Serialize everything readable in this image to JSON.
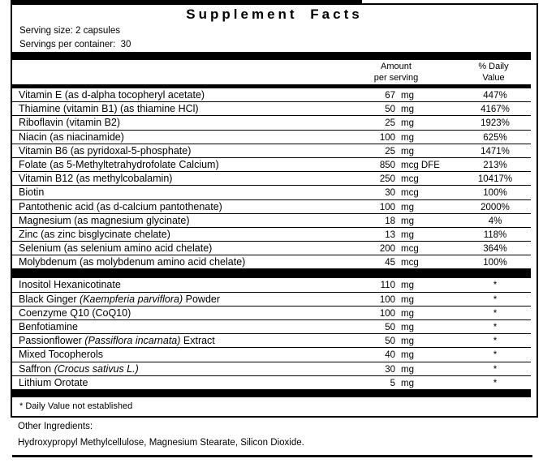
{
  "colors": {
    "ink": "#000000",
    "background": "#ffffff"
  },
  "label": {
    "title": "Supplement Facts",
    "serving_size": "Serving size: 2 capsules",
    "servings_per_container": "Servings per container:  30",
    "headers": {
      "amount_line1": "Amount",
      "amount_line2": "per serving",
      "dv_line1": "% Daily",
      "dv_line2": "Value"
    },
    "rows": [
      {
        "name_pre": "Vitamin E (as d-alpha tocopheryl acetate)",
        "name_italic": "",
        "name_post": "",
        "amount": "67",
        "unit": "mg",
        "dv": "447%"
      },
      {
        "name_pre": "Thiamine (vitamin B1) (as thiamine HCl)",
        "name_italic": "",
        "name_post": "",
        "amount": "50",
        "unit": "mg",
        "dv": "4167%"
      },
      {
        "name_pre": "Riboflavin (vitamin B2)",
        "name_italic": "",
        "name_post": "",
        "amount": "25",
        "unit": "mg",
        "dv": "1923%"
      },
      {
        "name_pre": "Niacin (as niacinamide)",
        "name_italic": "",
        "name_post": "",
        "amount": "100",
        "unit": "mg",
        "dv": "625%"
      },
      {
        "name_pre": "Vitamin B6 (as pyridoxal-5-phosphate)",
        "name_italic": "",
        "name_post": "",
        "amount": "25",
        "unit": "mg",
        "dv": "1471%"
      },
      {
        "name_pre": "Folate (as 5-Methyltetrahydrofolate Calcium)",
        "name_italic": "",
        "name_post": "",
        "amount": "850",
        "unit": "mcg DFE",
        "dv": "213%"
      },
      {
        "name_pre": "Vitamin B12 (as methylcobalamin)",
        "name_italic": "",
        "name_post": "",
        "amount": "250",
        "unit": "mcg",
        "dv": "10417%"
      },
      {
        "name_pre": "Biotin",
        "name_italic": "",
        "name_post": "",
        "amount": "30",
        "unit": "mcg",
        "dv": "100%"
      },
      {
        "name_pre": "Pantothenic acid (as d-calcium pantothenate)",
        "name_italic": "",
        "name_post": "",
        "amount": "100",
        "unit": "mg",
        "dv": "2000%"
      },
      {
        "name_pre": "Magnesium (as magnesium glycinate)",
        "name_italic": "",
        "name_post": "",
        "amount": "18",
        "unit": "mg",
        "dv": "4%"
      },
      {
        "name_pre": "Zinc (as zinc bisglycinate chelate)",
        "name_italic": "",
        "name_post": "",
        "amount": "13",
        "unit": "mg",
        "dv": "118%"
      },
      {
        "name_pre": "Selenium (as selenium amino acid chelate)",
        "name_italic": "",
        "name_post": "",
        "amount": "200",
        "unit": "mcg",
        "dv": "364%"
      },
      {
        "name_pre": "Molybdenum (as molybdenum amino acid chelate)",
        "name_italic": "",
        "name_post": "",
        "amount": "45",
        "unit": "mcg",
        "dv": "100%"
      }
    ],
    "rows2": [
      {
        "name_pre": "Inositol Hexanicotinate",
        "name_italic": "",
        "name_post": "",
        "amount": "110",
        "unit": "mg",
        "dv": "*"
      },
      {
        "name_pre": "Black Ginger ",
        "name_italic": "(Kaempferia parviflora)",
        "name_post": " Powder",
        "amount": "100",
        "unit": "mg",
        "dv": "*"
      },
      {
        "name_pre": "Coenzyme Q10 (CoQ10)",
        "name_italic": "",
        "name_post": "",
        "amount": "100",
        "unit": "mg",
        "dv": "*"
      },
      {
        "name_pre": "Benfotiamine",
        "name_italic": "",
        "name_post": "",
        "amount": "50",
        "unit": "mg",
        "dv": "*"
      },
      {
        "name_pre": "Passionflower ",
        "name_italic": "(Passiflora incarnata)",
        "name_post": " Extract",
        "amount": "50",
        "unit": "mg",
        "dv": "*"
      },
      {
        "name_pre": "Mixed Tocopherols",
        "name_italic": "",
        "name_post": "",
        "amount": "40",
        "unit": "mg",
        "dv": "*"
      },
      {
        "name_pre": "Saffron ",
        "name_italic": "(Crocus sativus L.)",
        "name_post": "",
        "amount": "30",
        "unit": "mg",
        "dv": "*"
      },
      {
        "name_pre": "Lithium Orotate",
        "name_italic": "",
        "name_post": "",
        "amount": "5",
        "unit": "mg",
        "dv": "*"
      }
    ],
    "footnote": "* Daily Value not established"
  },
  "other_ingredients": {
    "heading": "Other Ingredients:",
    "text": "Hydroxypropyl Methylcellulose, Magnesium Stearate, Silicon Dioxide."
  }
}
